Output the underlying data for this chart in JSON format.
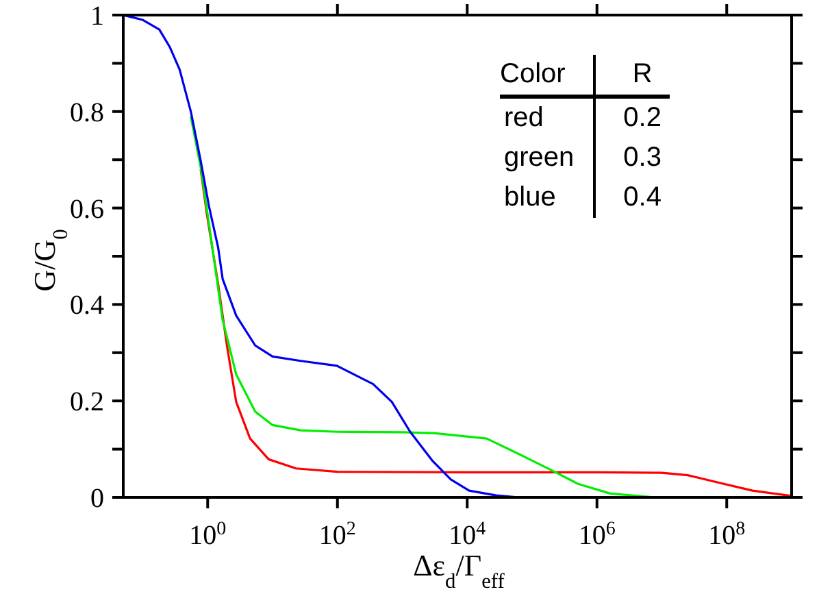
{
  "chart_data": {
    "type": "line",
    "xlabel": "Δε$_{d}$/Γ$_{eff}$",
    "ylabel": "G/G$_{0}$",
    "log": "x",
    "xlim": [
      0.05,
      1000000000
    ],
    "ylim": [
      0,
      1
    ],
    "xticks": [
      {
        "value": 1,
        "label": "10$^{0}$"
      },
      {
        "value": 100,
        "label": "10$^{2}$"
      },
      {
        "value": 10000,
        "label": "10$^{4}$"
      },
      {
        "value": 1000000,
        "label": "10$^{6}$"
      },
      {
        "value": 100000000,
        "label": "10$^{8}$"
      }
    ],
    "yticks": [
      0,
      {
        "value": 0.1,
        "label": null
      },
      0.2,
      {
        "value": 0.3,
        "label": null
      },
      0.4,
      {
        "value": 0.5,
        "label": null
      },
      0.6,
      {
        "value": 0.7,
        "label": null
      },
      0.8,
      {
        "value": 0.9,
        "label": null
      },
      1
    ],
    "grid": false,
    "legend": false,
    "marker": "none",
    "annotations": [
      "Color",
      "R",
      "red",
      "0.2",
      "green",
      "0.3",
      "blue",
      "0.4"
    ],
    "series": [
      {
        "color": "#ff0000",
        "x": [
          0.78,
          0.98,
          1.45,
          2,
          2.75,
          4.5,
          8.7,
          23,
          100,
          10000,
          1000000,
          10000000,
          25000000,
          68000000,
          250000000,
          1000000000
        ],
        "values": [
          0.68,
          0.584,
          0.442,
          0.311,
          0.198,
          0.122,
          0.079,
          0.06,
          0.053,
          0.052,
          0.052,
          0.051,
          0.046,
          0.032,
          0.014,
          0.003
        ]
      },
      {
        "color": "#00ee00",
        "x": [
          0.55,
          0.78,
          1.05,
          1.7,
          2.75,
          5.4,
          10,
          27,
          100,
          1000,
          3200,
          20000,
          74000,
          195000,
          510000,
          1600000,
          8000000
        ],
        "values": [
          0.79,
          0.685,
          0.566,
          0.368,
          0.255,
          0.178,
          0.15,
          0.139,
          0.136,
          0.135,
          0.133,
          0.122,
          0.085,
          0.057,
          0.028,
          0.008,
          0
        ]
      },
      {
        "color": "#0000ee",
        "x": [
          0.05,
          0.1,
          0.18,
          0.26,
          0.37,
          0.55,
          0.78,
          1.05,
          1.45,
          1.7,
          2.75,
          5.4,
          10,
          27,
          98,
          355,
          690,
          1320,
          2950,
          5600,
          10700,
          28000,
          63000
        ],
        "values": [
          1,
          0.99,
          0.97,
          0.934,
          0.887,
          0.8,
          0.698,
          0.603,
          0.518,
          0.453,
          0.377,
          0.315,
          0.292,
          0.283,
          0.273,
          0.235,
          0.198,
          0.136,
          0.075,
          0.037,
          0.014,
          0.004,
          0
        ]
      }
    ]
  }
}
